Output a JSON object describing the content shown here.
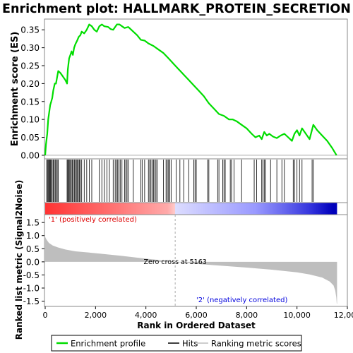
{
  "chart_data": {
    "type": "line",
    "title": "Enrichment plot: HALLMARK_PROTEIN_SECRETION",
    "colors": {
      "enrichment_line": "#00dd00",
      "hits": "#000000",
      "metric_fill": "#bebebe",
      "zero_cross_line": "#aaaaaa",
      "positive_label": "#dd0000",
      "negative_label": "#0000dd",
      "legend_border": "#000000"
    },
    "es_panel": {
      "ylabel": "Enrichment score (ES)",
      "ylim": [
        -0.01,
        0.38
      ],
      "yticks": [
        0.0,
        0.05,
        0.1,
        0.15,
        0.2,
        0.25,
        0.3,
        0.35
      ],
      "ytick_labels": [
        "0.00",
        "0.05",
        "0.10",
        "0.15",
        "0.20",
        "0.25",
        "0.30",
        "0.35"
      ],
      "xlim": [
        0,
        12000
      ],
      "zero_line": true,
      "series": [
        {
          "name": "Enrichment profile",
          "points": [
            [
              0,
              0.0
            ],
            [
              30,
              0.03
            ],
            [
              80,
              0.06
            ],
            [
              120,
              0.1
            ],
            [
              160,
              0.12
            ],
            [
              200,
              0.14
            ],
            [
              240,
              0.15
            ],
            [
              280,
              0.16
            ],
            [
              320,
              0.18
            ],
            [
              380,
              0.2
            ],
            [
              430,
              0.2
            ],
            [
              480,
              0.22
            ],
            [
              520,
              0.235
            ],
            [
              600,
              0.23
            ],
            [
              700,
              0.22
            ],
            [
              800,
              0.21
            ],
            [
              870,
              0.2
            ],
            [
              900,
              0.24
            ],
            [
              950,
              0.27
            ],
            [
              1000,
              0.28
            ],
            [
              1050,
              0.29
            ],
            [
              1100,
              0.28
            ],
            [
              1150,
              0.3
            ],
            [
              1200,
              0.31
            ],
            [
              1270,
              0.32
            ],
            [
              1330,
              0.33
            ],
            [
              1400,
              0.335
            ],
            [
              1450,
              0.345
            ],
            [
              1550,
              0.34
            ],
            [
              1650,
              0.35
            ],
            [
              1750,
              0.365
            ],
            [
              1850,
              0.36
            ],
            [
              1950,
              0.35
            ],
            [
              2050,
              0.345
            ],
            [
              2150,
              0.36
            ],
            [
              2250,
              0.365
            ],
            [
              2350,
              0.36
            ],
            [
              2500,
              0.358
            ],
            [
              2600,
              0.352
            ],
            [
              2700,
              0.35
            ],
            [
              2850,
              0.365
            ],
            [
              2950,
              0.365
            ],
            [
              3050,
              0.36
            ],
            [
              3150,
              0.355
            ],
            [
              3300,
              0.358
            ],
            [
              3500,
              0.345
            ],
            [
              3650,
              0.335
            ],
            [
              3800,
              0.322
            ],
            [
              3950,
              0.32
            ],
            [
              4100,
              0.312
            ],
            [
              4300,
              0.305
            ],
            [
              4500,
              0.295
            ],
            [
              4700,
              0.285
            ],
            [
              4900,
              0.27
            ],
            [
              5100,
              0.255
            ],
            [
              5300,
              0.24
            ],
            [
              5500,
              0.225
            ],
            [
              5700,
              0.21
            ],
            [
              5900,
              0.195
            ],
            [
              6100,
              0.18
            ],
            [
              6300,
              0.165
            ],
            [
              6500,
              0.145
            ],
            [
              6700,
              0.13
            ],
            [
              6900,
              0.115
            ],
            [
              7100,
              0.11
            ],
            [
              7300,
              0.1
            ],
            [
              7450,
              0.1
            ],
            [
              7600,
              0.095
            ],
            [
              7800,
              0.085
            ],
            [
              8000,
              0.075
            ],
            [
              8200,
              0.06
            ],
            [
              8350,
              0.05
            ],
            [
              8500,
              0.055
            ],
            [
              8600,
              0.045
            ],
            [
              8700,
              0.065
            ],
            [
              8800,
              0.055
            ],
            [
              8900,
              0.06
            ],
            [
              9050,
              0.052
            ],
            [
              9200,
              0.048
            ],
            [
              9350,
              0.055
            ],
            [
              9500,
              0.06
            ],
            [
              9650,
              0.05
            ],
            [
              9800,
              0.04
            ],
            [
              9900,
              0.06
            ],
            [
              10000,
              0.07
            ],
            [
              10100,
              0.055
            ],
            [
              10200,
              0.075
            ],
            [
              10350,
              0.06
            ],
            [
              10500,
              0.045
            ],
            [
              10650,
              0.085
            ],
            [
              10800,
              0.07
            ],
            [
              11000,
              0.055
            ],
            [
              11200,
              0.04
            ],
            [
              11400,
              0.02
            ],
            [
              11570,
              0.0
            ]
          ]
        }
      ]
    },
    "hits_panel": {
      "hit_ranks": [
        60,
        90,
        120,
        150,
        180,
        210,
        240,
        280,
        320,
        360,
        400,
        440,
        480,
        520,
        870,
        900,
        930,
        960,
        1000,
        1040,
        1080,
        1120,
        1160,
        1200,
        1240,
        1280,
        1320,
        1360,
        1400,
        1450,
        1550,
        1650,
        1750,
        1850,
        2150,
        2250,
        2350,
        2450,
        2550,
        2700,
        2780,
        2830,
        2880,
        2930,
        2980,
        3050,
        3150,
        3200,
        3250,
        3300,
        3500,
        3800,
        3850,
        3950,
        4100,
        4150,
        4200,
        4250,
        4300,
        4350,
        4400,
        4450,
        4700,
        4800,
        4850,
        4900,
        4950,
        5000,
        5200,
        5350,
        5500,
        5700,
        5900,
        5950,
        6000,
        6450,
        6500,
        6850,
        6900,
        7050,
        7100,
        7150,
        7350,
        7400,
        7500,
        7800,
        8300,
        8400,
        8600,
        8650,
        8700,
        8750,
        8950,
        9200,
        9400,
        9500,
        9850,
        9900,
        10000,
        10100,
        10200,
        10600,
        10650
      ],
      "ranking_bar_stops": [
        [
          0.0,
          "#ff3333"
        ],
        [
          0.25,
          "#ff7777"
        ],
        [
          0.42,
          "#ffaaaa"
        ],
        [
          0.445,
          "#ffcccc"
        ],
        [
          0.445,
          "#ddddff"
        ],
        [
          0.58,
          "#bbbbff"
        ],
        [
          0.72,
          "#9999ff"
        ],
        [
          0.82,
          "#6666ee"
        ],
        [
          0.91,
          "#3333dd"
        ],
        [
          0.985,
          "#0000bb"
        ],
        [
          1.0,
          "#0000bb"
        ]
      ]
    },
    "metric_panel": {
      "ylabel": "Ranked list metric (Signal2Noise)",
      "ylim": [
        -1.7,
        1.8
      ],
      "yticks": [
        -1.5,
        -1.0,
        -0.5,
        0.0,
        0.5,
        1.0,
        1.5
      ],
      "ytick_labels": [
        "-1.5",
        "-1.0",
        "-0.5",
        "0.0",
        "0.5",
        "1.0",
        "1.5"
      ],
      "xlim": [
        0,
        12000
      ],
      "xticks": [
        0,
        2000,
        4000,
        6000,
        8000,
        10000,
        12000
      ],
      "xtick_labels": [
        "0",
        "2,000",
        "4,000",
        "6,000",
        "8,000",
        "10,000",
        "12,000"
      ],
      "xlabel": "Rank in Ordered Dataset",
      "zero_cross_rank": 5163,
      "zero_cross_label": "Zero cross at 5163",
      "positive_label": "'1' (positively correlated)",
      "negative_label": "'2' (negatively correlated)",
      "profile": [
        [
          0,
          0.95
        ],
        [
          50,
          0.85
        ],
        [
          150,
          0.72
        ],
        [
          300,
          0.62
        ],
        [
          500,
          0.55
        ],
        [
          800,
          0.47
        ],
        [
          1200,
          0.4
        ],
        [
          2000,
          0.33
        ],
        [
          3000,
          0.23
        ],
        [
          4000,
          0.12
        ],
        [
          4800,
          0.04
        ],
        [
          5163,
          0.0
        ],
        [
          6000,
          -0.08
        ],
        [
          7000,
          -0.15
        ],
        [
          8000,
          -0.22
        ],
        [
          9000,
          -0.3
        ],
        [
          10000,
          -0.4
        ],
        [
          10500,
          -0.48
        ],
        [
          11000,
          -0.6
        ],
        [
          11300,
          -0.75
        ],
        [
          11450,
          -0.9
        ],
        [
          11520,
          -1.1
        ],
        [
          11560,
          -1.35
        ],
        [
          11580,
          -1.6
        ],
        [
          11590,
          -1.6
        ]
      ]
    },
    "legend": {
      "entries": [
        "Enrichment profile",
        "Hits",
        "Ranking metric scores"
      ],
      "placement": "bottom"
    }
  }
}
